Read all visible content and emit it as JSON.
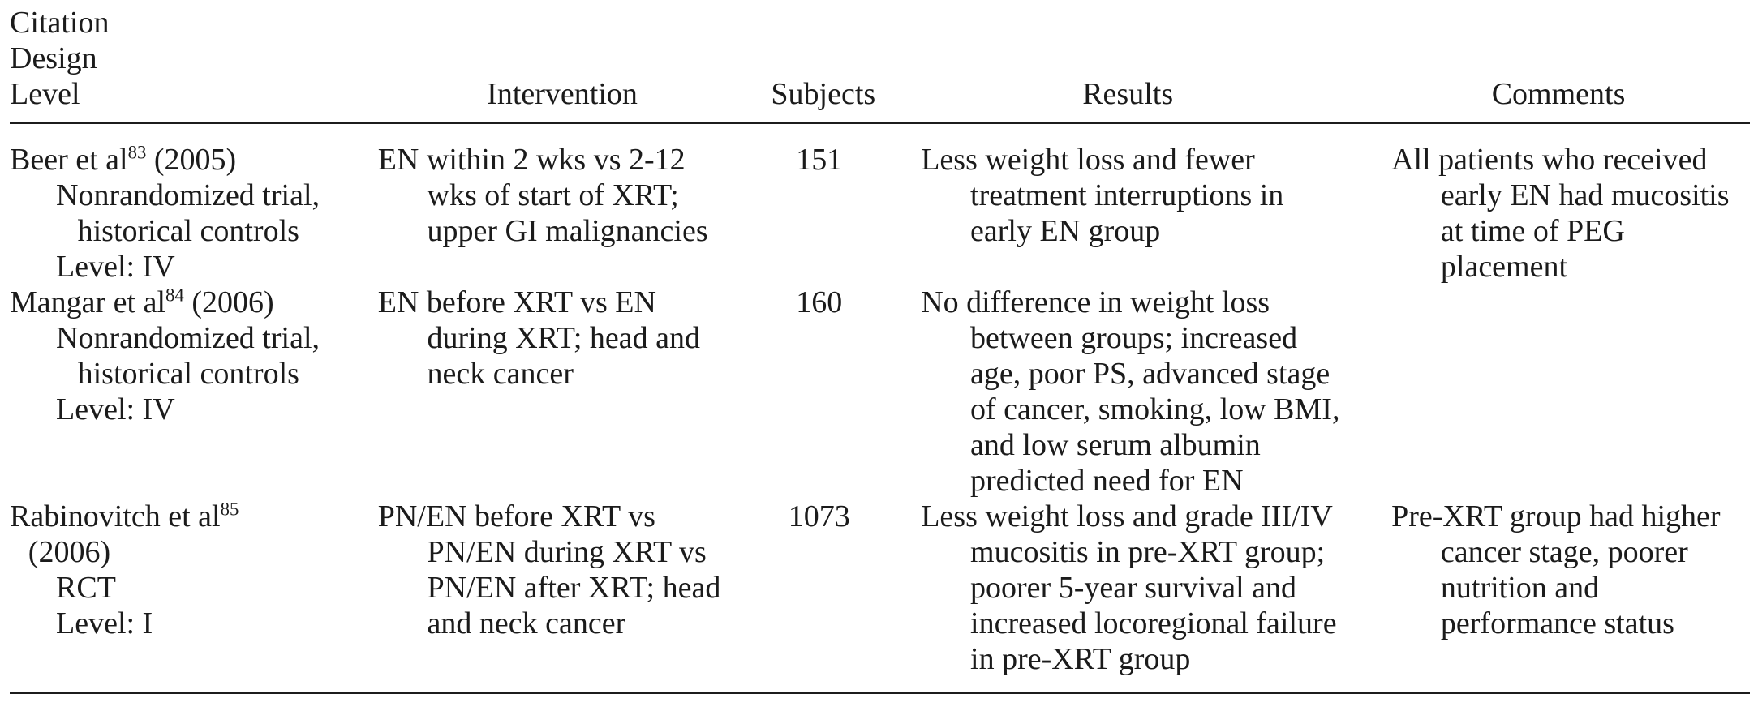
{
  "table": {
    "headers": {
      "citation_lines": [
        "Citation",
        "Design",
        "Level"
      ],
      "intervention": "Intervention",
      "subjects": "Subjects",
      "results": "Results",
      "comments": "Comments"
    },
    "rows": [
      {
        "citation": [
          {
            "text": "Beer et al",
            "sup": "83",
            "tail": " (2005)",
            "indent": 0
          },
          {
            "text": "Nonrandomized trial,",
            "indent": 2
          },
          {
            "text": "historical controls",
            "indent": 3
          },
          {
            "text": "Level: IV",
            "indent": 2
          }
        ],
        "intervention": "EN within 2 wks vs 2-12\nwks of start of XRT;\nupper GI malignancies",
        "subjects": "151",
        "results": "Less weight loss and fewer\ntreatment interruptions in\nearly EN group",
        "comments": "All patients who received\nearly EN had mucositis\nat time of PEG\nplacement"
      },
      {
        "citation": [
          {
            "text": "Mangar et al",
            "sup": "84",
            "tail": " (2006)",
            "indent": 0
          },
          {
            "text": "Nonrandomized trial,",
            "indent": 2
          },
          {
            "text": "historical controls",
            "indent": 3
          },
          {
            "text": "Level: IV",
            "indent": 2
          }
        ],
        "intervention": "EN before XRT vs EN\nduring XRT; head and\nneck cancer",
        "subjects": "160",
        "results": "No difference in weight loss\nbetween groups; increased\nage, poor PS, advanced stage\nof cancer, smoking, low BMI,\nand low serum albumin\npredicted need for EN",
        "comments": ""
      },
      {
        "citation": [
          {
            "text": "Rabinovitch et al",
            "sup": "85",
            "tail": "",
            "indent": 0
          },
          {
            "text": "(2006)",
            "indent": 1
          },
          {
            "text": "RCT",
            "indent": 2
          },
          {
            "text": "Level: I",
            "indent": 2
          }
        ],
        "intervention": "PN/EN before XRT vs\nPN/EN during XRT vs\nPN/EN after XRT; head\nand neck cancer",
        "subjects": "1073",
        "results": "Less weight loss and grade III/IV\nmucositis in pre-XRT group;\npoorer 5-year survival and\nincreased locoregional failure\nin pre-XRT group",
        "comments": "Pre-XRT group had higher\ncancer stage, poorer\nnutrition and\nperformance status"
      }
    ]
  }
}
